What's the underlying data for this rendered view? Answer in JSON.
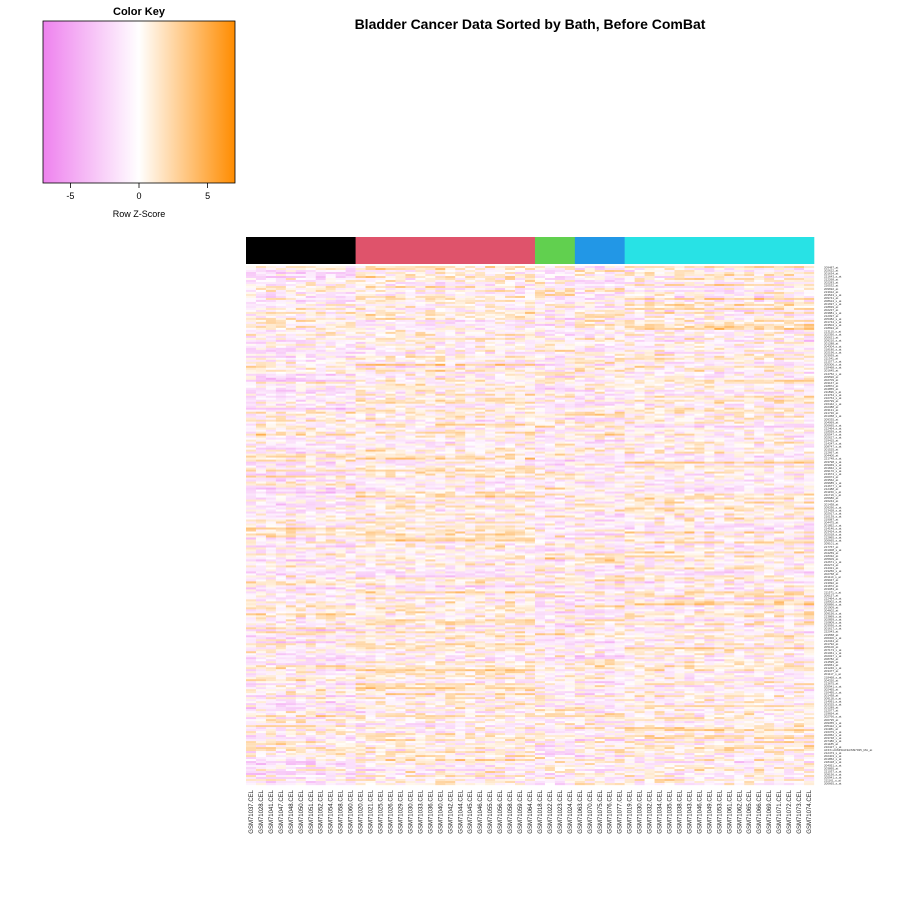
{
  "chart_data": {
    "type": "heatmap",
    "title": "Bladder Cancer Data Sorted by Bath, Before ComBat",
    "color_key": {
      "title": "Color Key",
      "xlabel": "Row Z-Score",
      "range": [
        -7,
        7
      ],
      "ticks": [
        -5,
        0,
        5
      ],
      "tick_labels": [
        "-5",
        "0",
        "5"
      ],
      "colors": {
        "low": "#ee82ee",
        "mid": "#ffffff",
        "high": "#ff8c00"
      }
    },
    "batch_colors": [
      "#000000",
      "#df536b",
      "#61d04f",
      "#2297e6",
      "#28e2e5"
    ],
    "batch_sizes": [
      11,
      18,
      4,
      5,
      19
    ],
    "columns": [
      "GSM71037.CEL",
      "GSM71028.CEL",
      "GSM71041.CEL",
      "GSM71047.CEL",
      "GSM71048.CEL",
      "GSM71050.CEL",
      "GSM71051.CEL",
      "GSM71052.CEL",
      "GSM71054.CEL",
      "GSM71058.CEL",
      "GSM71060.CEL",
      "GSM71020.CEL",
      "GSM71021.CEL",
      "GSM71025.CEL",
      "GSM71026.CEL",
      "GSM71029.CEL",
      "GSM71030.CEL",
      "GSM71033.CEL",
      "GSM71036.CEL",
      "GSM71040.CEL",
      "GSM71042.CEL",
      "GSM71044.CEL",
      "GSM71045.CEL",
      "GSM71046.CEL",
      "GSM71055.CEL",
      "GSM71056.CEL",
      "GSM71058.CEL",
      "GSM71059.CEL",
      "GSM71064.CEL",
      "GSM71018.CEL",
      "GSM71022.CEL",
      "GSM71023.CEL",
      "GSM71024.CEL",
      "GSM71063.CEL",
      "GSM71070.CEL",
      "GSM71075.CEL",
      "GSM71076.CEL",
      "GSM71077.CEL",
      "GSM71019.CEL",
      "GSM71030.CEL",
      "GSM71032.CEL",
      "GSM71034.CEL",
      "GSM71035.CEL",
      "GSM71038.CEL",
      "GSM71043.CEL",
      "GSM71046.CEL",
      "GSM71049.CEL",
      "GSM71053.CEL",
      "GSM71061.CEL",
      "GSM71062.CEL",
      "GSM71065.CEL",
      "GSM71066.CEL",
      "GSM71069.CEL",
      "GSM71071.CEL",
      "GSM71072.CEL",
      "GSM71073.CEL",
      "GSM71074.CEL"
    ],
    "rows": [
      "209487_at",
      "202622_at",
      "201634_at",
      "221643_s_at",
      "212268_at",
      "202283_at",
      "220532_at",
      "209692_at",
      "213912_at",
      "203543_s_at",
      "209741_at",
      "208624_s_at",
      "201697_s_at",
      "218839_at",
      "202237_at",
      "203881_s_at",
      "212097_at",
      "205382_s_at",
      "201744_s_at",
      "203504_s_at",
      "218694_at",
      "213110_s_at",
      "202350_s_at",
      "200621_at",
      "209210_s_at",
      "201288_at",
      "204304_s_at",
      "218180_s_at",
      "202196_s_at",
      "203939_at",
      "211341_at",
      "221577_x_at",
      "205306_x_at",
      "218468_s_at",
      "201645_at",
      "214752_x_at",
      "209596_at",
      "202709_at",
      "203167_at",
      "218872_at",
      "204855_at",
      "211896_s_at",
      "213764_s_at",
      "210764_s_at",
      "200799_at",
      "216442_x_at",
      "202388_at",
      "203131_at",
      "221730_at",
      "201058_s_at",
      "209335_at",
      "204069_at",
      "200665_s_at",
      "212464_s_at",
      "218559_s_at",
      "205547_s_at",
      "202627_s_at",
      "219415_at",
      "214247_s_at",
      "208747_s_at",
      "201525_at",
      "212667_at",
      "204400_at",
      "221748_s_at",
      "203798_s_at",
      "209069_s_at",
      "201842_s_at",
      "209170_s_at",
      "213674_x_at",
      "200974_at",
      "203562_at",
      "209685_s_at",
      "214677_x_at",
      "212488_at",
      "201150_s_at",
      "211719_x_at",
      "205680_at",
      "220244_at",
      "201438_at",
      "209290_s_at",
      "213428_s_at",
      "202917_s_at",
      "210139_s_at",
      "219087_at",
      "204475_at",
      "201852_x_at",
      "214146_s_at",
      "203424_s_at",
      "202018_s_at",
      "212865_s_at",
      "200665_s_at",
      "209101_at",
      "217767_at",
      "201008_s_at",
      "204259_at",
      "218332_at",
      "205609_at",
      "212671_s_at",
      "202274_at",
      "214321_at",
      "219250_s_at",
      "202768_at",
      "201110_s_at",
      "209047_at",
      "213992_at",
      "221872_at",
      "203083_at",
      "211571_s_at",
      "206157_at",
      "212464_s_at",
      "218002_s_at",
      "205890_s_at",
      "201909_at",
      "204602_at",
      "209156_s_at",
      "213869_x_at",
      "202859_x_at",
      "210809_s_at",
      "203936_s_at",
      "201617_x_at",
      "222043_at",
      "219558_at",
      "206300_s_at",
      "212344_at",
      "201792_at",
      "205100_at",
      "207173_x_at",
      "201061_s_at",
      "202037_s_at",
      "208782_at",
      "214595_at",
      "209651_at",
      "221246_x_at",
      "203477_at",
      "201117_s_at",
      "218468_s_at",
      "204320_at",
      "213675_at",
      "205941_s_at",
      "202465_at",
      "210495_x_at",
      "201438_at",
      "209118_s_at",
      "214091_s_at",
      "203325_s_at",
      "201289_at",
      "212077_at",
      "219654_at",
      "202766_s_at",
      "200795_at",
      "209355_s_at",
      "205422_s_at",
      "211981_at",
      "216379_x_at",
      "202952_s_at",
      "203748_x_at",
      "207480_s_at",
      "201185_at",
      "210427_x_at",
      "AFFX-HUMISGF3A/M97935_MA_at",
      "212473_s_at",
      "202403_s_at",
      "201852_x_at",
      "218418_s_at",
      "204051_s_at",
      "203895_at",
      "221037_s_at",
      "209156_s_at",
      "205941_s_at",
      "211161_s_at",
      "200665_s_at"
    ]
  }
}
